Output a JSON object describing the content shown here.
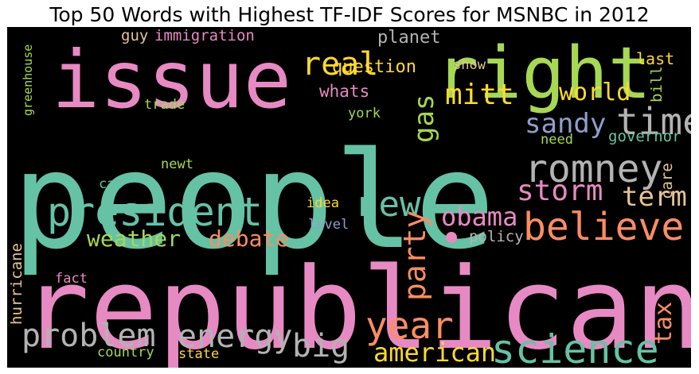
{
  "title": "Top 50 Words with Highest TF-IDF Scores for MSNBC in 2012",
  "colors": {
    "teal": "#66c2a5",
    "pink": "#e78ac3",
    "green": "#a6d854",
    "orange": "#fc8d62",
    "blue": "#8da0cb",
    "yellow": "#ffd92f",
    "tan": "#e5c494",
    "gray": "#b3b3b3"
  },
  "words": [
    {
      "key": "people",
      "text": "people"
    },
    {
      "key": "republican",
      "text": "republican"
    },
    {
      "key": "issue",
      "text": "issue"
    },
    {
      "key": "right",
      "text": "right"
    },
    {
      "key": "president",
      "text": "president"
    },
    {
      "key": "romney",
      "text": "romney"
    },
    {
      "key": "science",
      "text": "science"
    },
    {
      "key": "believe",
      "text": "believe"
    },
    {
      "key": "new",
      "text": "new"
    },
    {
      "key": "energy",
      "text": "energy"
    },
    {
      "key": "problem",
      "text": "problem"
    },
    {
      "key": "year",
      "text": "year"
    },
    {
      "key": "time",
      "text": "time"
    },
    {
      "key": "mitt",
      "text": "mitt"
    },
    {
      "key": "real",
      "text": "real"
    },
    {
      "key": "storm",
      "text": "storm"
    },
    {
      "key": "obama",
      "text": "obama"
    },
    {
      "key": "term",
      "text": "term"
    },
    {
      "key": "sandy",
      "text": "sandy"
    },
    {
      "key": "big",
      "text": "big"
    },
    {
      "key": "american",
      "text": "american"
    },
    {
      "key": "gas",
      "text": "gas"
    },
    {
      "key": "party",
      "text": "party"
    },
    {
      "key": "weather",
      "text": "weather"
    },
    {
      "key": "debate",
      "text": "debate"
    },
    {
      "key": "world",
      "text": "world"
    },
    {
      "key": "tax",
      "text": "tax"
    },
    {
      "key": "planet",
      "text": "planet"
    },
    {
      "key": "question",
      "text": "question"
    },
    {
      "key": "immigration",
      "text": "immigration"
    },
    {
      "key": "guy",
      "text": "guy"
    },
    {
      "key": "governor",
      "text": "governor"
    },
    {
      "key": "policy",
      "text": "policy"
    },
    {
      "key": "whats",
      "text": "whats"
    },
    {
      "key": "trade",
      "text": "trade"
    },
    {
      "key": "york",
      "text": "york"
    },
    {
      "key": "newt",
      "text": "newt"
    },
    {
      "key": "cap",
      "text": "cap"
    },
    {
      "key": "need",
      "text": "need"
    },
    {
      "key": "show",
      "text": "show"
    },
    {
      "key": "last",
      "text": "last"
    },
    {
      "key": "idea",
      "text": "idea"
    },
    {
      "key": "level",
      "text": "level"
    },
    {
      "key": "country",
      "text": "country"
    },
    {
      "key": "state",
      "text": "state"
    },
    {
      "key": "fact",
      "text": "fact"
    },
    {
      "key": "hurricane",
      "text": "hurricane"
    },
    {
      "key": "greenhouse",
      "text": "greenhouse"
    },
    {
      "key": "bill",
      "text": "bill"
    },
    {
      "key": "care",
      "text": "care"
    }
  ]
}
